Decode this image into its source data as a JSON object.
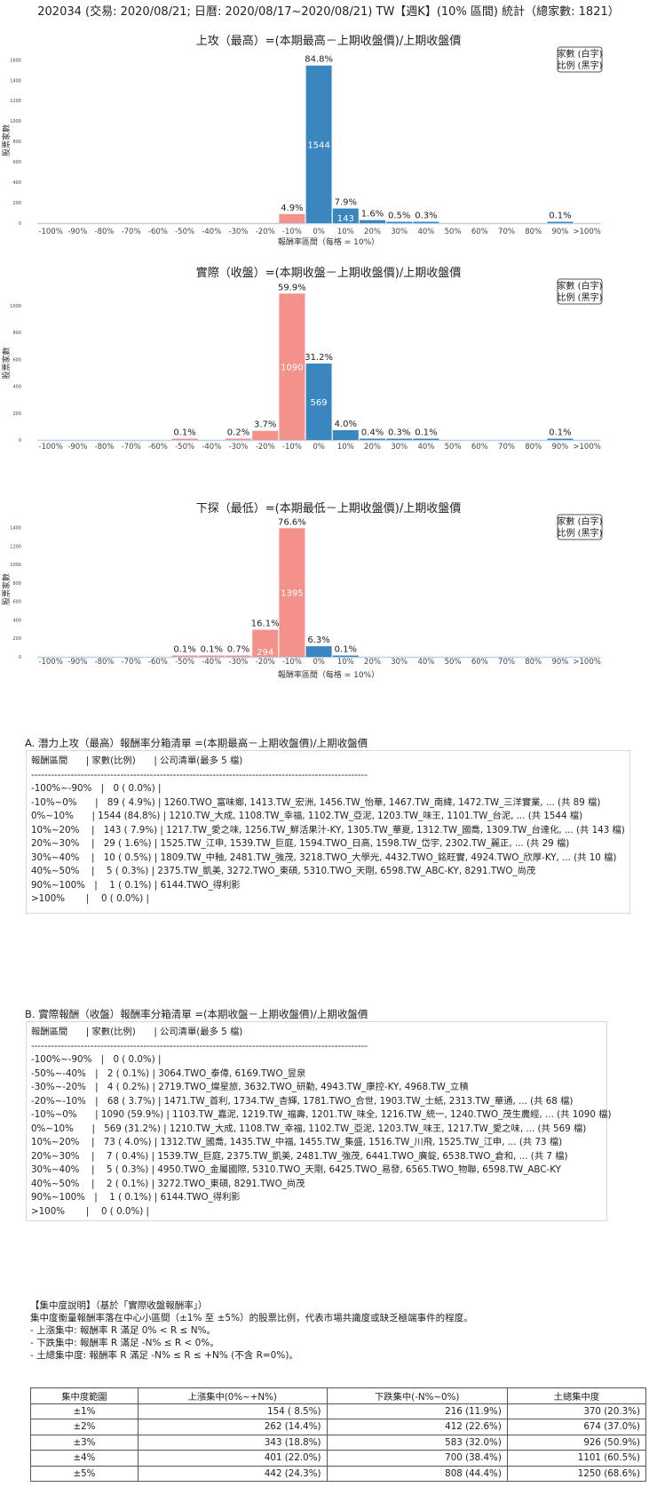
{
  "header": {
    "title": "202034 (交易: 2020/08/21; 日曆: 2020/08/17~2020/08/21) TW【週K】(10% 區間) 統計（總家數: 1821）"
  },
  "legend": {
    "line1": "家數 (白字)",
    "line2": "比例 (黑字)"
  },
  "colors": {
    "positive": "#3a87c0",
    "negative": "#f4918a",
    "axis": "#b9d2e8",
    "legend_border": "#555555"
  },
  "chart_data": [
    {
      "type": "bar",
      "title": "上攻（最高）=(本期最高－上期收盤價)/上期收盤價",
      "xlabel": "報酬率區間（每格 = 10%）",
      "ylabel": "股票家數",
      "categories": [
        "-100%",
        "-90%",
        "-80%",
        "-70%",
        "-60%",
        "-50%",
        "-40%",
        "-30%",
        "-20%",
        "-10%",
        "0%",
        "10%",
        "20%",
        "30%",
        "40%",
        "50%",
        "60%",
        "70%",
        "80%",
        "90%",
        ">100%"
      ],
      "values": [
        0,
        0,
        0,
        0,
        0,
        0,
        0,
        0,
        0,
        89,
        1544,
        143,
        29,
        10,
        5,
        0,
        0,
        0,
        0,
        1,
        0
      ],
      "labels": [
        "",
        "",
        "",
        "",
        "",
        "",
        "",
        "",
        "",
        "4.9%",
        "84.8%",
        "7.9%",
        "1.6%",
        "0.5%",
        "0.3%",
        "",
        "",
        "",
        "",
        "0.1%",
        ""
      ],
      "ylim": [
        0,
        1620
      ],
      "yticks": [
        0,
        200,
        400,
        600,
        800,
        1000,
        1200,
        1400,
        1600
      ]
    },
    {
      "type": "bar",
      "title": "實際（收盤）=(本期收盤－上期收盤價)/上期收盤價",
      "xlabel": "",
      "ylabel": "股票家數",
      "categories": [
        "-100%",
        "-90%",
        "-80%",
        "-70%",
        "-60%",
        "-50%",
        "-40%",
        "-30%",
        "-20%",
        "-10%",
        "0%",
        "10%",
        "20%",
        "30%",
        "40%",
        "50%",
        "60%",
        "70%",
        "80%",
        "90%",
        ">100%"
      ],
      "values": [
        0,
        0,
        0,
        0,
        0,
        2,
        0,
        4,
        68,
        1090,
        569,
        73,
        7,
        5,
        2,
        0,
        0,
        0,
        0,
        1,
        0
      ],
      "labels": [
        "",
        "",
        "",
        "",
        "",
        "0.1%",
        "",
        "0.2%",
        "3.7%",
        "59.9%",
        "31.2%",
        "4.0%",
        "0.4%",
        "0.3%",
        "0.1%",
        "",
        "",
        "",
        "",
        "0.1%",
        ""
      ],
      "ylim": [
        0,
        1145
      ],
      "yticks": [
        0,
        200,
        400,
        600,
        800,
        1000
      ]
    },
    {
      "type": "bar",
      "title": "下探（最低）=(本期最低－上期收盤價)/上期收盤價",
      "xlabel": "報酬率區間（每格 = 10%）",
      "ylabel": "股票家數",
      "categories": [
        "-100%",
        "-90%",
        "-80%",
        "-70%",
        "-60%",
        "-50%",
        "-40%",
        "-30%",
        "-20%",
        "-10%",
        "0%",
        "10%",
        "20%",
        "30%",
        "40%",
        "50%",
        "60%",
        "70%",
        "80%",
        "90%",
        ">100%"
      ],
      "values": [
        0,
        0,
        0,
        0,
        0,
        1,
        1,
        13,
        294,
        1395,
        115,
        1,
        0,
        0,
        0,
        0,
        0,
        0,
        0,
        0,
        0
      ],
      "labels": [
        "",
        "",
        "",
        "",
        "",
        "0.1%",
        "0.1%",
        "0.7%",
        "16.1%",
        "76.6%",
        "6.3%",
        "0.1%",
        "",
        "",
        "",
        "",
        "",
        "",
        "",
        "",
        ""
      ],
      "ylim": [
        0,
        1465
      ],
      "yticks": [
        0,
        200,
        400,
        600,
        800,
        1000,
        1200,
        1400
      ]
    }
  ],
  "listA": {
    "title": "A. 潛力上攻（最高）報酬率分箱清單 =(本期最高－上期收盤價)/上期收盤價",
    "rows": [
      "報酬區間　　| 家數(比例)　　| 公司清單(最多 5 檔)",
      "------------------------------------------------------------------------------------------------------",
      "-100%~-90%　|　0 ( 0.0%) |",
      "-10%~0%　　|　89 ( 4.9%) | 1260.TWO_富味鄉, 1413.TW_宏洲, 1456.TW_怡華, 1467.TW_南緯, 1472.TW_三洋實業, ... (共 89 檔)",
      "0%~10%　　| 1544 (84.8%) | 1210.TW_大成, 1108.TW_幸福, 1102.TW_亞泥, 1203.TW_味王, 1101.TW_台泥, ... (共 1544 檔)",
      "10%~20%　 |　143 ( 7.9%) | 1217.TW_愛之味, 1256.TW_鮮活果汁-KY, 1305.TW_華夏, 1312.TW_國喬, 1309.TW_台達化, ... (共 143 檔)",
      "20%~30%　 |　29 ( 1.6%) | 1525.TW_江申, 1539.TW_巨庭, 1594.TWO_日高, 1598.TW_岱宇, 2302.TW_麗正, ... (共 29 檔)",
      "30%~40%　 |　10 ( 0.5%) | 1809.TW_中釉, 2481.TW_強茂, 3218.TWO_大學光, 4432.TWO_銘旺實, 4924.TWO_欣厚-KY, ... (共 10 檔)",
      "40%~50%　 |　 5 ( 0.3%) | 2375.TW_凱美, 3272.TWO_東碩, 5310.TWO_天剛, 6598.TW_ABC-KY, 8291.TWO_尚茂",
      "90%~100%　|　 1 ( 0.1%) | 6144.TWO_得利影",
      ">100%　　 |　 0 ( 0.0%) |"
    ]
  },
  "listB": {
    "title": "B. 實際報酬（收盤）報酬率分箱清單 =(本期收盤－上期收盤價)/上期收盤價",
    "rows": [
      "報酬區間　　| 家數(比例)　　| 公司清單(最多 5 檔)",
      "------------------------------------------------------------------------------------------------------",
      "-100%~-90%　|　0 ( 0.0%) |",
      "-50%~-40%　|　2 ( 0.1%) | 3064.TWO_泰偉, 6169.TWO_昱泉",
      "-30%~-20%　|　4 ( 0.2%) | 2719.TWO_燦星旅, 3632.TWO_研勤, 4943.TW_康控-KY, 4968.TW_立積",
      "-20%~-10%　|　68 ( 3.7%) | 1471.TW_首利, 1734.TW_杏輝, 1781.TWO_合世, 1903.TW_士紙, 2313.TW_華通, ... (共 68 檔)",
      "-10%~0%　　| 1090 (59.9%) | 1103.TW_嘉泥, 1219.TW_福壽, 1201.TW_味全, 1216.TW_統一, 1240.TWO_茂生農經, ... (共 1090 檔)",
      "0%~10%　　|　569 (31.2%) | 1210.TW_大成, 1108.TW_幸福, 1102.TW_亞泥, 1203.TW_味王, 1217.TW_愛之味, ... (共 569 檔)",
      "10%~20%　 |　73 ( 4.0%) | 1312.TW_國喬, 1435.TW_中福, 1455.TW_集盛, 1516.TW_川飛, 1525.TW_江申, ... (共 73 檔)",
      "20%~30%　 |　 7 ( 0.4%) | 1539.TW_巨庭, 2375.TW_凱美, 2481.TW_強茂, 6441.TWO_廣錠, 6538.TWO_倉和, ... (共 7 檔)",
      "30%~40%　 |　 5 ( 0.3%) | 4950.TWO_金屬國際, 5310.TWO_天剛, 6425.TWO_易發, 6565.TWO_物聯, 6598.TW_ABC-KY",
      "40%~50%　 |　 2 ( 0.1%) | 3272.TWO_東碩, 8291.TWO_尚茂",
      "90%~100%　|　 1 ( 0.1%) | 6144.TWO_得利影",
      ">100%　　 |　 0 ( 0.0%) |"
    ]
  },
  "note": {
    "lines": [
      "【集中度說明】（基於「實際收盤報酬率」）",
      "集中度衡量報酬率落在中心小區間（±1% 至 ±5%）的股票比例，代表市場共識度或缺乏極端事件的程度。",
      " - 上漲集中: 報酬率 R 滿足 0% < R ≤ N%。",
      " - 下跌集中: 報酬率 R 滿足 -N% ≤ R < 0%。",
      " - 土總集中度: 報酬率 R 滿足 -N% ≤ R ≤ +N% (不含 R=0%)。"
    ]
  },
  "table": {
    "headers": [
      "集中度範圍",
      "上漲集中(0%~+N%)",
      "下跌集中(-N%~0%)",
      "土總集中度"
    ],
    "rows": [
      [
        "±1%",
        "154 ( 8.5%)",
        "216 (11.9%)",
        "370 (20.3%)"
      ],
      [
        "±2%",
        "262 (14.4%)",
        "412 (22.6%)",
        "674 (37.0%)"
      ],
      [
        "±3%",
        "343 (18.8%)",
        "583 (32.0%)",
        "926 (50.9%)"
      ],
      [
        "±4%",
        "401 (22.0%)",
        "700 (38.4%)",
        "1101 (60.5%)"
      ],
      [
        "±5%",
        "442 (24.3%)",
        "808 (44.4%)",
        "1250 (68.6%)"
      ]
    ]
  }
}
